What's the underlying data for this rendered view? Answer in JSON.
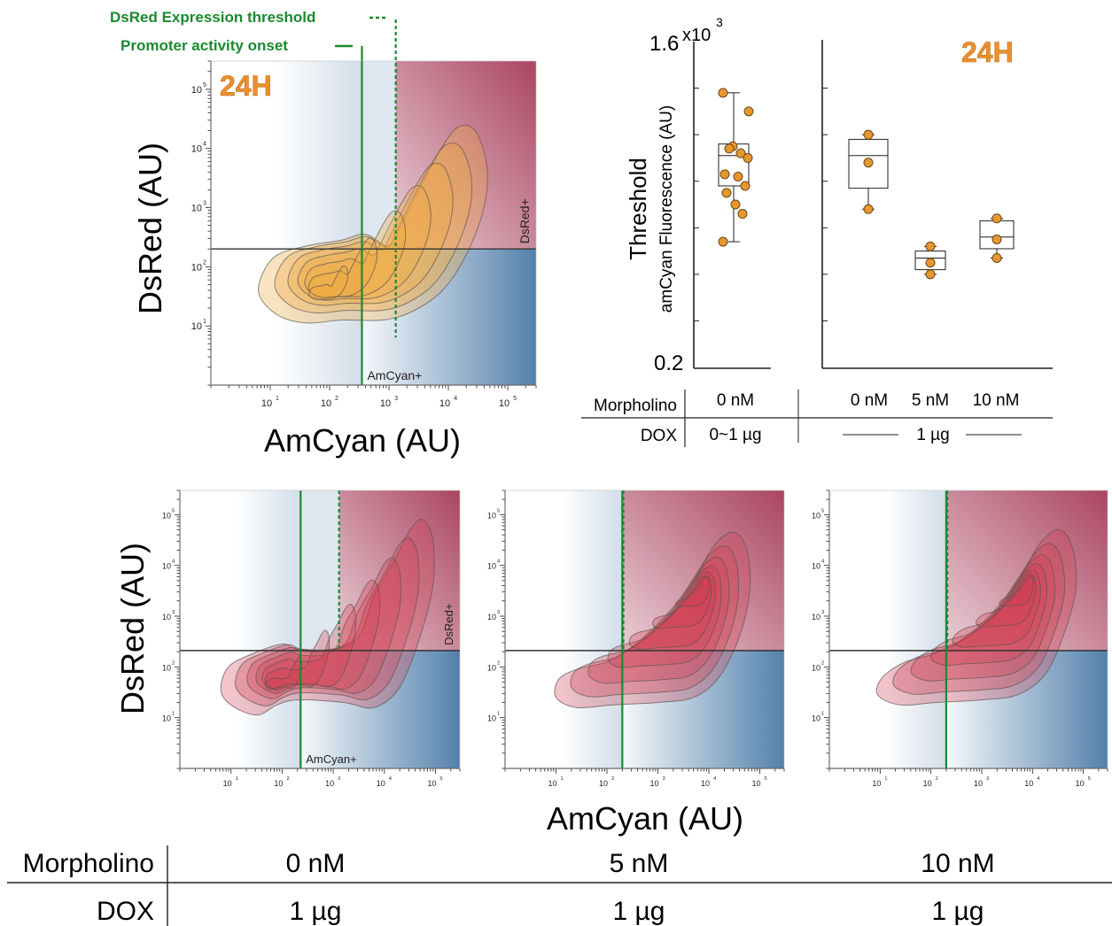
{
  "colors": {
    "green": "#1a8a2f",
    "orange_text": "#e8912e",
    "orange_fill": "#f0a83c",
    "orange_point": "#e8962e",
    "red_fill": "#d23c4e",
    "contour_line": "#5f5450",
    "axis": "#231f20",
    "quadrant_red": "#a63c5a",
    "quadrant_blue": "#4a7aa8"
  },
  "top_left": {
    "legend": {
      "threshold_label": "DsRed Expression threshold",
      "onset_label": "Promoter activity onset"
    },
    "time_label": "24H",
    "ylabel": "DsRed (AU)",
    "xlabel": "AmCyan (AU)",
    "quadrant_labels": {
      "x_gate": "AmCyan+",
      "y_gate": "DsRed+"
    }
  },
  "top_right": {
    "multiplier": "x10",
    "multiplier_exp": "3",
    "ytick_top": "1.6",
    "ytick_bottom": "0.2",
    "ylabel_main": "Threshold",
    "ylabel_sub": "amCyan Fluorescence (AU)",
    "time_label": "24H",
    "table": {
      "row1_label": "Morpholino",
      "row2_label": "DOX",
      "left_morpholino": "0 nM",
      "left_dox": "0~1 µg",
      "right_morpholino": [
        "0 nM",
        "5 nM",
        "10 nM"
      ],
      "right_dox": "1 µg"
    }
  },
  "bottom": {
    "ylabel": "DsRed (AU)",
    "xlabel": "AmCyan (AU)",
    "quadrant_labels": {
      "x_gate": "AmCyan+",
      "y_gate": "DsRed+"
    },
    "table": {
      "row1_label": "Morpholino",
      "row2_label": "DOX",
      "columns": [
        {
          "morpholino": "0 nM",
          "dox": "1 µg"
        },
        {
          "morpholino": "5 nM",
          "dox": "1 µg"
        },
        {
          "morpholino": "10 nM",
          "dox": "1 µg"
        }
      ]
    }
  },
  "chart_data": [
    {
      "type": "heatmap",
      "name": "flow-density-24H",
      "xlabel": "AmCyan (AU)",
      "ylabel": "DsRed (AU)",
      "x_scale": "log",
      "y_scale": "log",
      "xlim": [
        1,
        300000
      ],
      "ylim": [
        1,
        300000
      ],
      "x_ticks": [
        "10",
        "10",
        "10",
        "10",
        "10"
      ],
      "x_tick_exps": [
        "1",
        "2",
        "3",
        "4",
        "5"
      ],
      "y_ticks": [
        "10",
        "10",
        "10",
        "10",
        "10"
      ],
      "y_tick_exps": [
        "1",
        "2",
        "3",
        "4",
        "5"
      ],
      "gates": {
        "dsred_threshold_x": 1300,
        "promoter_onset_x": 350,
        "dsred_positive_y": 200
      },
      "annotation": "24H",
      "fill": "orange"
    },
    {
      "type": "scatter",
      "name": "threshold-boxplot-left",
      "ylabel": "Threshold amCyan Fluorescence (AU)",
      "ylim": [
        0.2,
        1.6
      ],
      "y_multiplier": "x10^3",
      "groups": [
        {
          "morpholino": "0 nM",
          "dox": "0~1 µg",
          "points": [
            1.38,
            1.3,
            1.15,
            1.14,
            1.12,
            1.1,
            1.03,
            1.02,
            0.98,
            0.95,
            0.9,
            0.86,
            0.74
          ],
          "box": {
            "q1": 0.98,
            "median": 1.11,
            "q3": 1.16,
            "whisker_low": 0.74,
            "whisker_high": 1.38
          }
        }
      ]
    },
    {
      "type": "scatter",
      "name": "threshold-boxplot-right",
      "ylabel": "Threshold amCyan Fluorescence (AU)",
      "ylim": [
        0.2,
        1.6
      ],
      "annotation": "24H",
      "groups": [
        {
          "morpholino": "0 nM",
          "dox": "1 µg",
          "points": [
            1.2,
            1.08,
            0.88
          ],
          "box": {
            "q1": 0.97,
            "median": 1.11,
            "q3": 1.18,
            "whisker_low": 0.88,
            "whisker_high": 1.2
          }
        },
        {
          "morpholino": "5 nM",
          "dox": "1 µg",
          "points": [
            0.72,
            0.65,
            0.6
          ],
          "box": {
            "q1": 0.62,
            "median": 0.67,
            "q3": 0.7,
            "whisker_low": 0.6,
            "whisker_high": 0.72
          }
        },
        {
          "morpholino": "10 nM",
          "dox": "1 µg",
          "points": [
            0.84,
            0.75,
            0.67
          ],
          "box": {
            "q1": 0.71,
            "median": 0.76,
            "q3": 0.83,
            "whisker_low": 0.67,
            "whisker_high": 0.84
          }
        }
      ]
    },
    {
      "type": "heatmap",
      "name": "flow-density-0nM",
      "xlabel": "AmCyan (AU)",
      "ylabel": "DsRed (AU)",
      "x_scale": "log",
      "y_scale": "log",
      "xlim": [
        1,
        300000
      ],
      "ylim": [
        1,
        300000
      ],
      "gates": {
        "dsred_threshold_x": 1300,
        "promoter_onset_x": 230,
        "dsred_positive_y": 210
      },
      "morpholino": "0 nM",
      "dox": "1 µg",
      "fill": "red"
    },
    {
      "type": "heatmap",
      "name": "flow-density-5nM",
      "xlabel": "AmCyan (AU)",
      "ylabel": "DsRed (AU)",
      "x_scale": "log",
      "y_scale": "log",
      "xlim": [
        1,
        300000
      ],
      "ylim": [
        1,
        300000
      ],
      "gates": {
        "dsred_threshold_x": 210,
        "promoter_onset_x": 200,
        "dsred_positive_y": 210
      },
      "morpholino": "5 nM",
      "dox": "1 µg",
      "fill": "red"
    },
    {
      "type": "heatmap",
      "name": "flow-density-10nM",
      "xlabel": "AmCyan (AU)",
      "ylabel": "DsRed (AU)",
      "x_scale": "log",
      "y_scale": "log",
      "xlim": [
        1,
        300000
      ],
      "ylim": [
        1,
        300000
      ],
      "gates": {
        "dsred_threshold_x": 210,
        "promoter_onset_x": 200,
        "dsred_positive_y": 210
      },
      "morpholino": "10 nM",
      "dox": "1 µg",
      "fill": "red"
    }
  ]
}
